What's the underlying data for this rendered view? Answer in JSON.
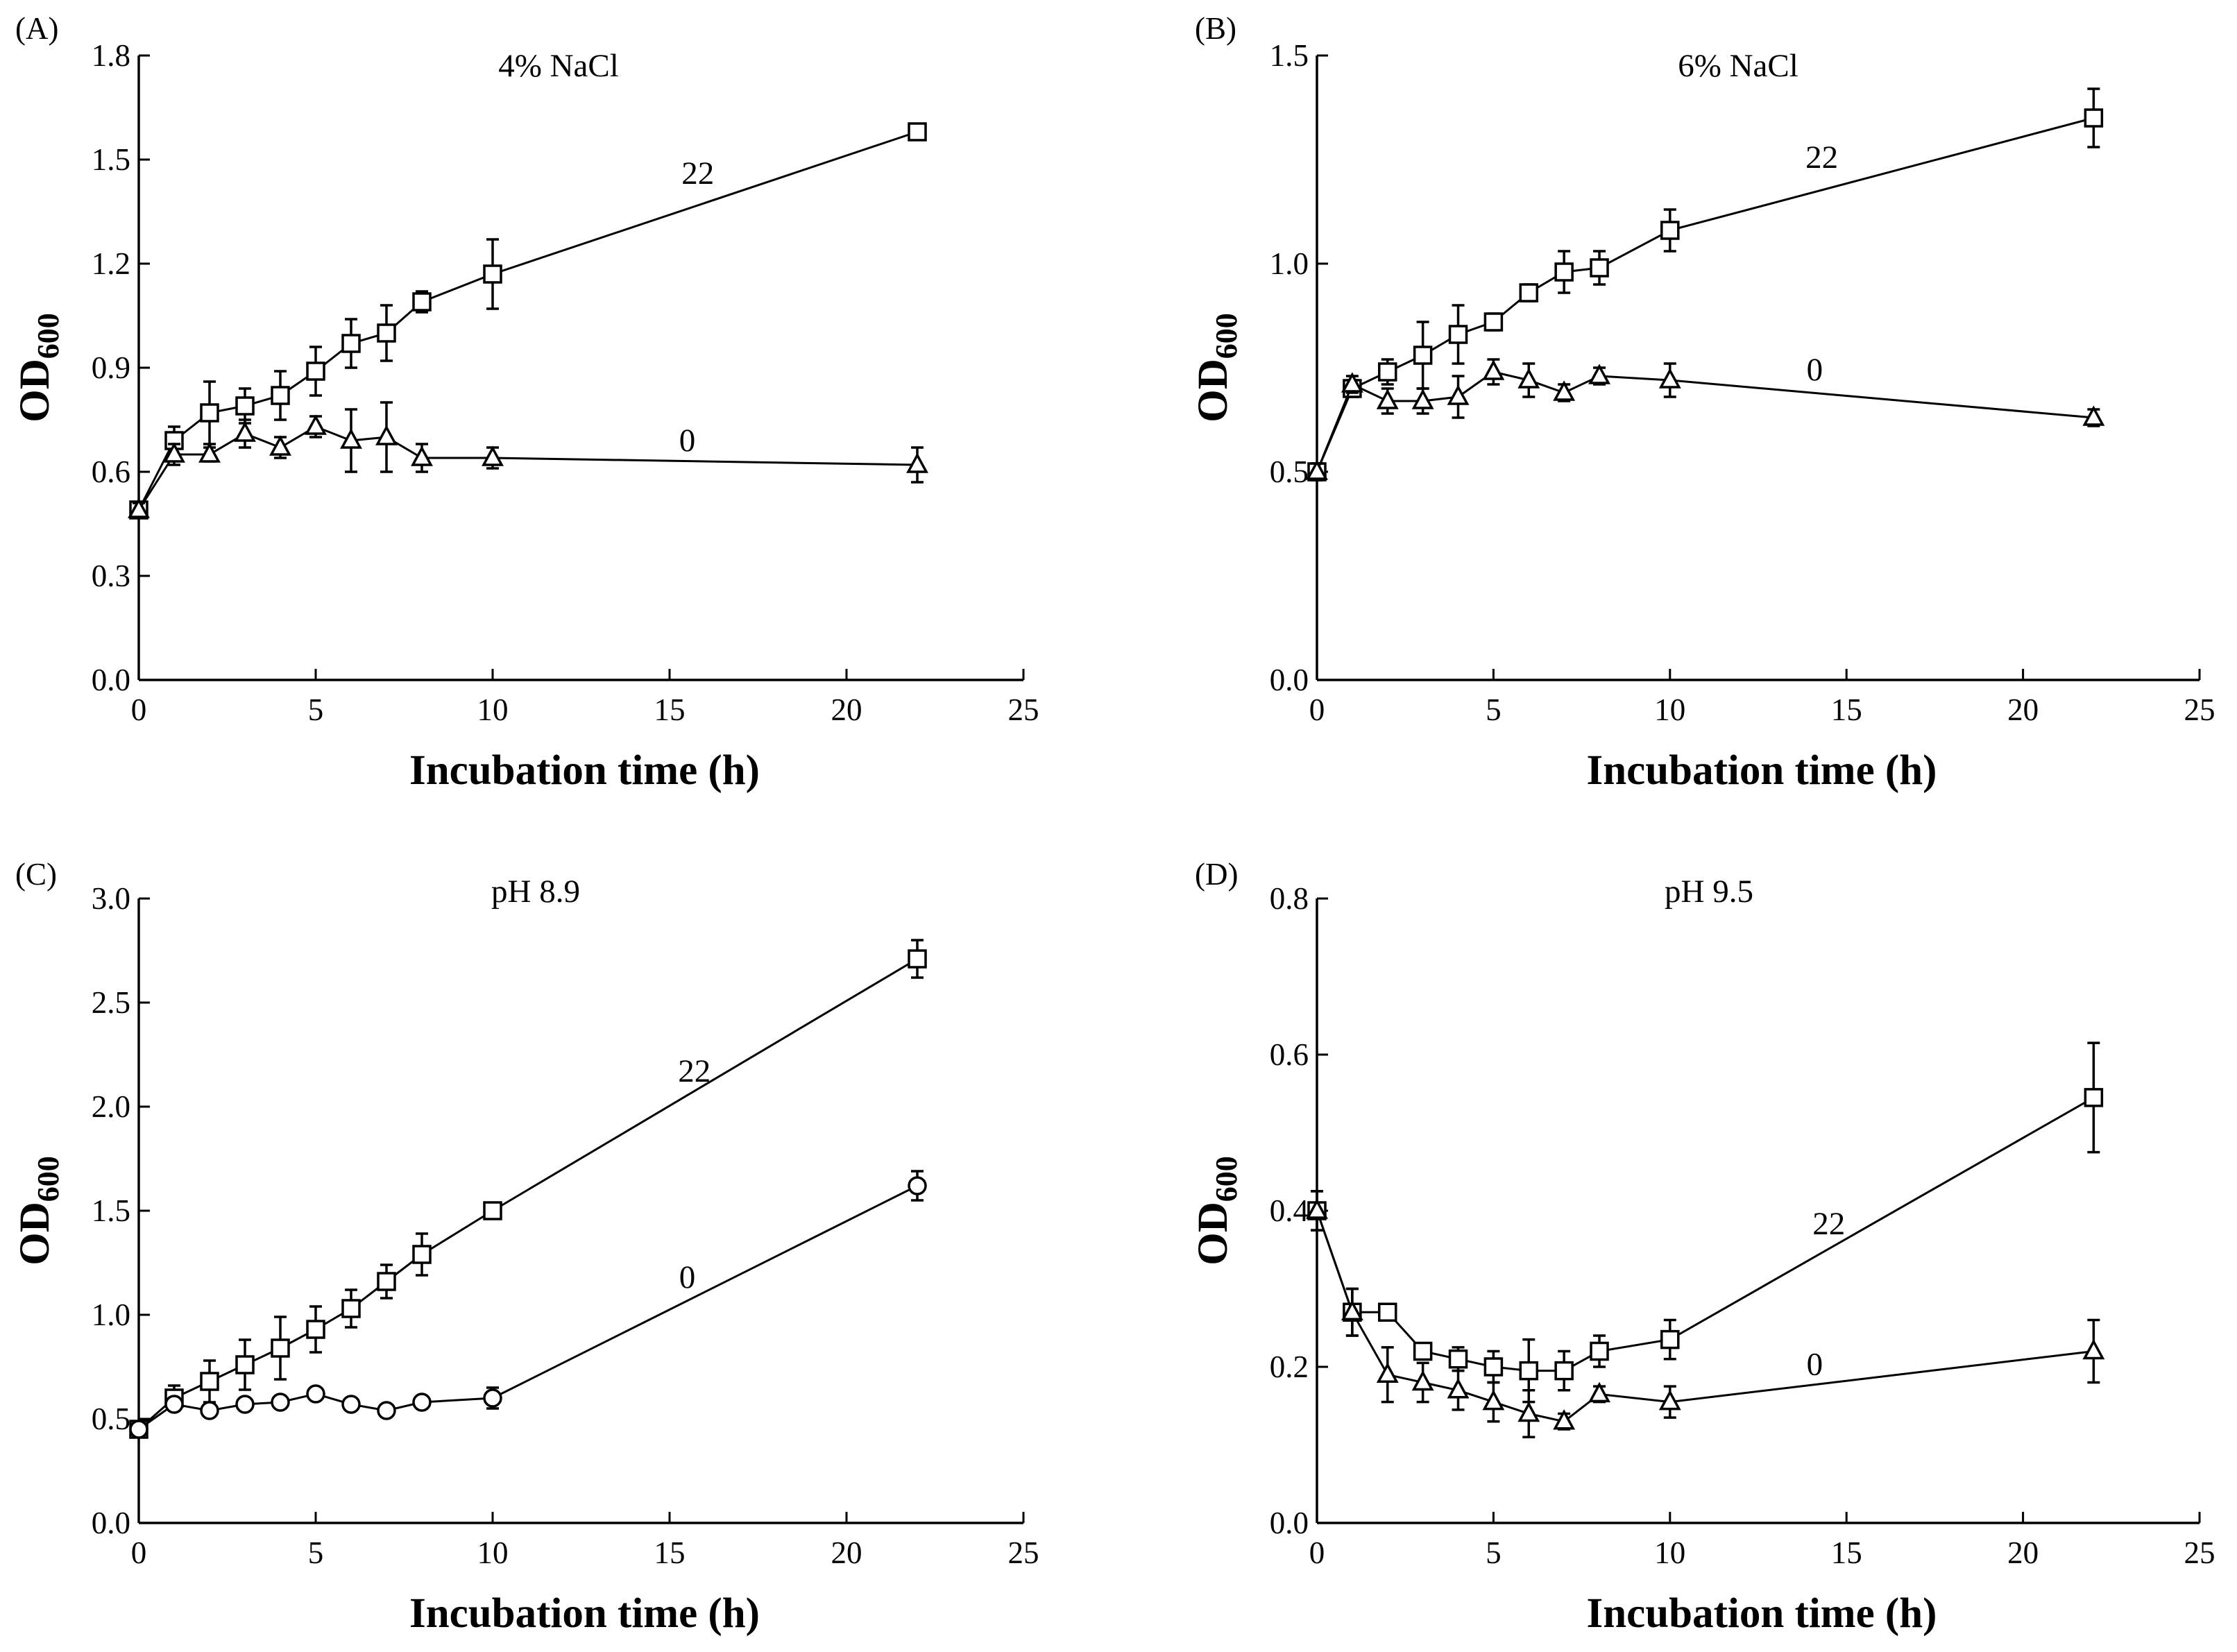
{
  "chart_data": [
    {
      "type": "line",
      "panel_label": "(A)",
      "title": "4% NaCl",
      "xlabel": "Incubation time (h)",
      "ylabel_main": "OD",
      "ylabel_sub": "600",
      "xlim": [
        0,
        25
      ],
      "ylim": [
        0,
        1.8
      ],
      "xticks": [
        "0",
        "5",
        "10",
        "15",
        "20",
        "25"
      ],
      "yticks": [
        "0.0",
        "0.3",
        "0.6",
        "0.9",
        "1.2",
        "1.5",
        "1.8"
      ],
      "series": [
        {
          "name": "22",
          "marker": "square",
          "x": [
            0,
            1,
            2,
            3,
            4,
            5,
            6,
            7,
            8,
            10,
            22
          ],
          "y": [
            0.49,
            0.69,
            0.77,
            0.79,
            0.82,
            0.89,
            0.97,
            1.0,
            1.09,
            1.17,
            1.58
          ],
          "err": [
            0.02,
            0.04,
            0.09,
            0.05,
            0.07,
            0.07,
            0.07,
            0.08,
            0.03,
            0.1,
            0.02
          ],
          "label_pos": [
            15.8,
            1.43
          ]
        },
        {
          "name": "0",
          "marker": "triangle",
          "x": [
            0,
            1,
            2,
            3,
            4,
            5,
            6,
            7,
            8,
            10,
            22
          ],
          "y": [
            0.49,
            0.65,
            0.65,
            0.71,
            0.67,
            0.73,
            0.69,
            0.7,
            0.64,
            0.64,
            0.62
          ],
          "err": [
            0.02,
            0.03,
            0.02,
            0.04,
            0.03,
            0.03,
            0.09,
            0.1,
            0.04,
            0.03,
            0.05
          ],
          "label_pos": [
            15.5,
            0.66
          ]
        }
      ]
    },
    {
      "type": "line",
      "panel_label": "(B)",
      "title": "6% NaCl",
      "xlabel": "Incubation time (h)",
      "ylabel_main": "OD",
      "ylabel_sub": "600",
      "xlim": [
        0,
        25
      ],
      "ylim": [
        0,
        1.5
      ],
      "xticks": [
        "0",
        "5",
        "10",
        "15",
        "20",
        "25"
      ],
      "yticks": [
        "0.0",
        "0.5",
        "1.0",
        "1.5"
      ],
      "series": [
        {
          "name": "22",
          "marker": "square",
          "x": [
            0,
            1,
            2,
            3,
            4,
            5,
            6,
            7,
            8,
            10,
            22
          ],
          "y": [
            0.5,
            0.7,
            0.74,
            0.78,
            0.83,
            0.86,
            0.93,
            0.98,
            0.99,
            1.08,
            1.35
          ],
          "err": [
            0.02,
            0.02,
            0.03,
            0.08,
            0.07,
            0.02,
            0.02,
            0.05,
            0.04,
            0.05,
            0.07
          ],
          "label_pos": [
            14.3,
            1.23
          ]
        },
        {
          "name": "0",
          "marker": "triangle",
          "x": [
            0,
            1,
            2,
            3,
            4,
            5,
            6,
            7,
            8,
            10,
            22
          ],
          "y": [
            0.5,
            0.71,
            0.67,
            0.67,
            0.68,
            0.74,
            0.72,
            0.69,
            0.73,
            0.72,
            0.63
          ],
          "err": [
            0.02,
            0.02,
            0.03,
            0.03,
            0.05,
            0.03,
            0.04,
            0.02,
            0.02,
            0.04,
            0.02
          ],
          "label_pos": [
            14.1,
            0.72
          ]
        }
      ]
    },
    {
      "type": "line",
      "panel_label": "(C)",
      "title": "pH 8.9",
      "xlabel": "Incubation time (h)",
      "ylabel_main": "OD",
      "ylabel_sub": "600",
      "xlim": [
        0,
        25
      ],
      "ylim": [
        0,
        3.0
      ],
      "xticks": [
        "0",
        "5",
        "10",
        "15",
        "20",
        "25"
      ],
      "yticks": [
        "0.0",
        "0.5",
        "1.0",
        "1.5",
        "2.0",
        "2.5",
        "3.0"
      ],
      "series": [
        {
          "name": "22",
          "marker": "square",
          "x": [
            0,
            1,
            2,
            3,
            4,
            5,
            6,
            7,
            8,
            10,
            22
          ],
          "y": [
            0.45,
            0.6,
            0.68,
            0.76,
            0.84,
            0.93,
            1.03,
            1.16,
            1.29,
            1.5,
            2.71
          ],
          "err": [
            0.02,
            0.06,
            0.1,
            0.12,
            0.15,
            0.11,
            0.09,
            0.08,
            0.1,
            0.03,
            0.09
          ],
          "label_pos": [
            15.7,
            2.12
          ]
        },
        {
          "name": "0",
          "marker": "circle",
          "x": [
            0,
            1,
            2,
            3,
            4,
            5,
            6,
            7,
            8,
            10,
            22
          ],
          "y": [
            0.45,
            0.57,
            0.54,
            0.57,
            0.58,
            0.62,
            0.57,
            0.54,
            0.58,
            0.6,
            1.62
          ],
          "err": [
            0.02,
            0.03,
            0.02,
            0.02,
            0.02,
            0.02,
            0.02,
            0.02,
            0.02,
            0.05,
            0.07
          ],
          "label_pos": [
            15.5,
            1.13
          ]
        }
      ]
    },
    {
      "type": "line",
      "panel_label": "(D)",
      "title": "pH 9.5",
      "xlabel": "Incubation time (h)",
      "ylabel_main": "OD",
      "ylabel_sub": "600",
      "xlim": [
        0,
        25
      ],
      "ylim": [
        0,
        0.8
      ],
      "xticks": [
        "0",
        "5",
        "10",
        "15",
        "20",
        "25"
      ],
      "yticks": [
        "0.0",
        "0.2",
        "0.4",
        "0.6",
        "0.8"
      ],
      "series": [
        {
          "name": "22",
          "marker": "square",
          "x": [
            0,
            1,
            2,
            3,
            4,
            5,
            6,
            7,
            8,
            10,
            22
          ],
          "y": [
            0.4,
            0.27,
            0.27,
            0.22,
            0.21,
            0.2,
            0.195,
            0.195,
            0.22,
            0.235,
            0.545
          ],
          "err": [
            0.025,
            0.03,
            0.01,
            0.01,
            0.015,
            0.02,
            0.04,
            0.025,
            0.02,
            0.025,
            0.07
          ],
          "label_pos": [
            14.5,
            0.37
          ]
        },
        {
          "name": "0",
          "marker": "triangle",
          "x": [
            0,
            1,
            2,
            3,
            4,
            5,
            6,
            7,
            8,
            10,
            22
          ],
          "y": [
            0.4,
            0.27,
            0.19,
            0.18,
            0.17,
            0.155,
            0.14,
            0.13,
            0.165,
            0.155,
            0.22
          ],
          "err": [
            0.025,
            0.03,
            0.035,
            0.025,
            0.025,
            0.025,
            0.03,
            0.01,
            0.01,
            0.02,
            0.04
          ],
          "label_pos": [
            14.1,
            0.19
          ]
        }
      ]
    }
  ]
}
